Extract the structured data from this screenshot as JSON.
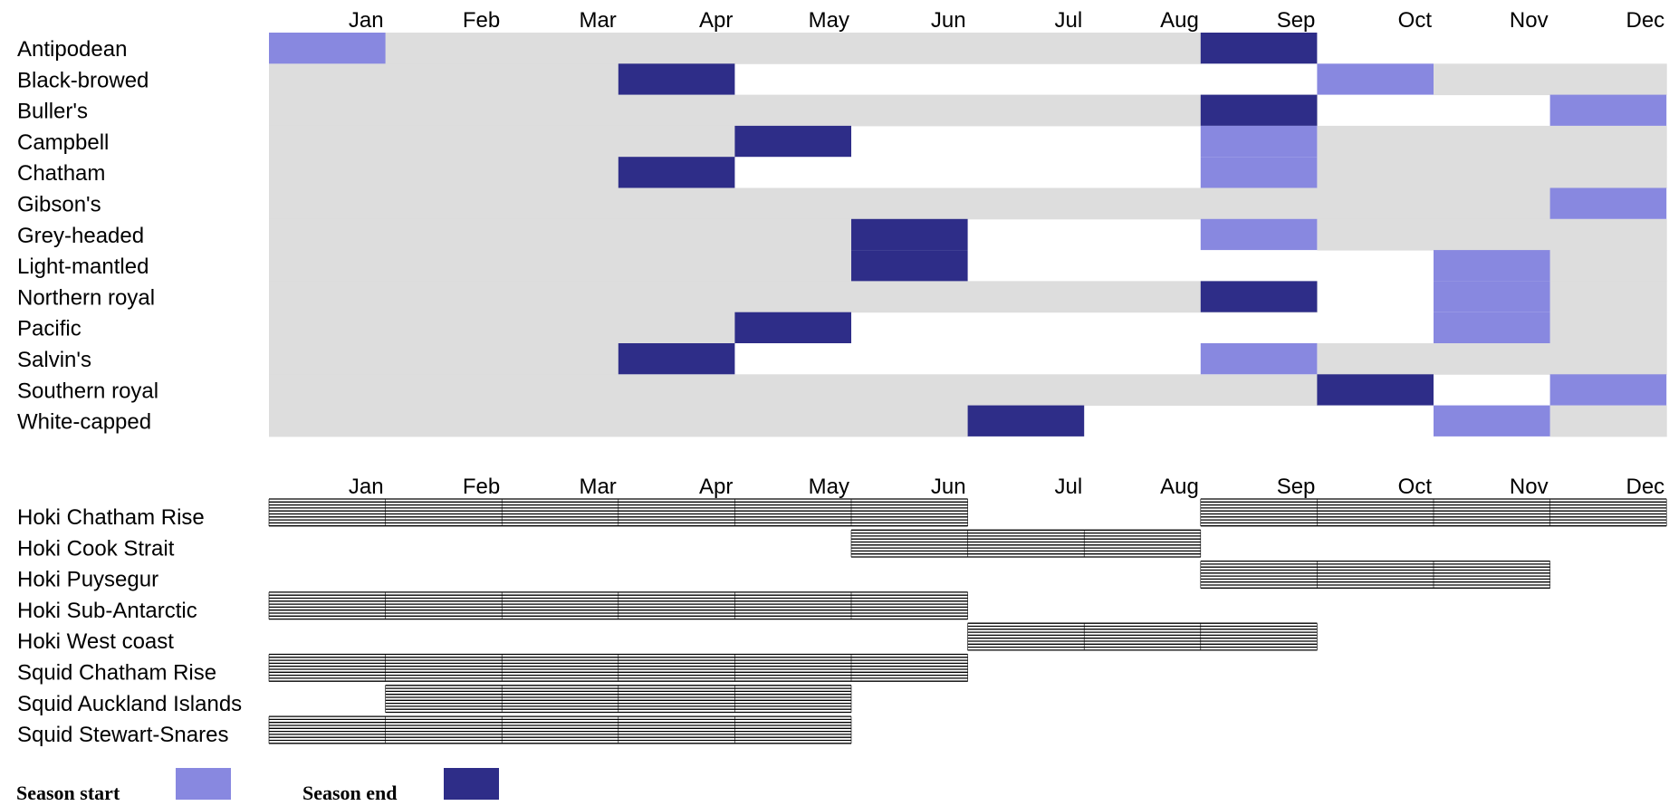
{
  "colors": {
    "season_start": "#8888e0",
    "season_end": "#2e2d88",
    "breeding_background": "#dddddd",
    "fishing_stripe": "#000000"
  },
  "chart_data": [
    {
      "type": "timeline",
      "categories": [
        "Jan",
        "Feb",
        "Mar",
        "Apr",
        "May",
        "Jun",
        "Jul",
        "Aug",
        "Sep",
        "Oct",
        "Nov",
        "Dec"
      ],
      "rows": [
        {
          "label": "Antipodean",
          "shade": [
            [
              1,
              8
            ]
          ],
          "start": [
            [
              1,
              1
            ]
          ],
          "end": [
            [
              9,
              9
            ]
          ]
        },
        {
          "label": "Black-browed",
          "shade": [
            [
              1,
              3
            ],
            [
              11,
              12
            ]
          ],
          "start": [
            [
              10,
              10
            ]
          ],
          "end": [
            [
              4,
              4
            ]
          ]
        },
        {
          "label": "Buller's",
          "shade": [
            [
              1,
              9
            ]
          ],
          "start": [
            [
              12,
              12
            ]
          ],
          "end": [
            [
              9,
              9
            ]
          ]
        },
        {
          "label": "Campbell",
          "shade": [
            [
              1,
              4
            ],
            [
              10,
              12
            ]
          ],
          "start": [
            [
              9,
              9
            ]
          ],
          "end": [
            [
              5,
              5
            ]
          ]
        },
        {
          "label": "Chatham",
          "shade": [
            [
              1,
              3
            ],
            [
              10,
              12
            ]
          ],
          "start": [
            [
              9,
              9
            ]
          ],
          "end": [
            [
              4,
              4
            ]
          ]
        },
        {
          "label": "Gibson's",
          "shade": [
            [
              1,
              11
            ]
          ],
          "start": [
            [
              12,
              12
            ]
          ],
          "end": []
        },
        {
          "label": "Grey-headed",
          "shade": [
            [
              1,
              5
            ],
            [
              10,
              12
            ]
          ],
          "start": [
            [
              9,
              9
            ]
          ],
          "end": [
            [
              6,
              6
            ]
          ]
        },
        {
          "label": "Light-mantled",
          "shade": [
            [
              1,
              5
            ],
            [
              12,
              12
            ]
          ],
          "start": [
            [
              11,
              11
            ]
          ],
          "end": [
            [
              6,
              6
            ]
          ]
        },
        {
          "label": "Northern royal",
          "shade": [
            [
              1,
              9
            ],
            [
              12,
              12
            ]
          ],
          "start": [
            [
              11,
              11
            ]
          ],
          "end": [
            [
              9,
              9
            ]
          ]
        },
        {
          "label": "Pacific",
          "shade": [
            [
              1,
              4
            ],
            [
              12,
              12
            ]
          ],
          "start": [
            [
              11,
              11
            ]
          ],
          "end": [
            [
              5,
              5
            ]
          ]
        },
        {
          "label": "Salvin's",
          "shade": [
            [
              1,
              3
            ],
            [
              10,
              12
            ]
          ],
          "start": [
            [
              9,
              9
            ]
          ],
          "end": [
            [
              4,
              4
            ]
          ]
        },
        {
          "label": "Southern royal",
          "shade": [
            [
              1,
              9
            ]
          ],
          "start": [
            [
              12,
              12
            ]
          ],
          "end": [
            [
              10,
              10
            ]
          ]
        },
        {
          "label": "White-capped",
          "shade": [
            [
              1,
              6
            ],
            [
              12,
              12
            ]
          ],
          "start": [
            [
              11,
              11
            ]
          ],
          "end": [
            [
              7,
              7
            ]
          ]
        }
      ]
    },
    {
      "type": "timeline",
      "categories": [
        "Jan",
        "Feb",
        "Mar",
        "Apr",
        "May",
        "Jun",
        "Jul",
        "Aug",
        "Sep",
        "Oct",
        "Nov",
        "Dec"
      ],
      "rows": [
        {
          "label": "Hoki Chatham Rise",
          "fishing": [
            [
              1,
              6
            ],
            [
              9,
              12
            ]
          ]
        },
        {
          "label": "Hoki Cook Strait",
          "fishing": [
            [
              6,
              8
            ]
          ]
        },
        {
          "label": "Hoki Puysegur",
          "fishing": [
            [
              9,
              11
            ]
          ]
        },
        {
          "label": "Hoki Sub-Antarctic",
          "fishing": [
            [
              1,
              6
            ]
          ]
        },
        {
          "label": "Hoki West coast",
          "fishing": [
            [
              7,
              9
            ]
          ]
        },
        {
          "label": "Squid Chatham Rise",
          "fishing": [
            [
              1,
              6
            ]
          ]
        },
        {
          "label": "Squid Auckland Islands",
          "fishing": [
            [
              2,
              5
            ]
          ]
        },
        {
          "label": "Squid Stewart-Snares",
          "fishing": [
            [
              1,
              5
            ]
          ]
        }
      ]
    }
  ],
  "legend": {
    "start_label": "Season start",
    "end_label": "Season end"
  }
}
